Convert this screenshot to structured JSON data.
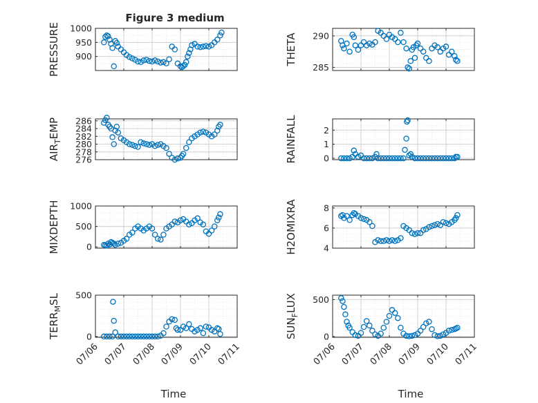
{
  "figure": {
    "title": "Figure 3 medium"
  },
  "colors": {
    "marker": "#0072BD",
    "axes": "#262626",
    "grid": "#d0d0d0",
    "minorgrid": "#e6e6e6"
  },
  "chart_data": [
    {
      "type": "scatter",
      "name": "PRESSURE",
      "ylabel": "PRESSURE",
      "ylabel_sub": "",
      "ylim": [
        850,
        1000
      ],
      "yticks": [
        "900",
        "950",
        "1000"
      ],
      "ytick_values": [
        900,
        950,
        1000
      ],
      "xlim": [
        0,
        5
      ],
      "grid": true,
      "x": [
        0.3,
        0.35,
        0.4,
        0.45,
        0.5,
        0.55,
        0.6,
        0.65,
        0.7,
        0.75,
        0.8,
        0.9,
        1.0,
        1.1,
        1.2,
        1.3,
        1.4,
        1.5,
        1.6,
        1.7,
        1.8,
        1.9,
        2.0,
        2.1,
        2.2,
        2.3,
        2.4,
        2.5,
        2.6,
        2.7,
        2.8,
        2.9,
        3.0,
        3.05,
        3.1,
        3.15,
        3.2,
        3.25,
        3.3,
        3.35,
        3.4,
        3.5,
        3.6,
        3.7,
        3.8,
        3.9,
        4.0,
        4.1,
        4.2,
        4.3,
        4.4,
        4.45
      ],
      "y": [
        950,
        970,
        975,
        972,
        960,
        945,
        930,
        865,
        955,
        948,
        935,
        925,
        915,
        905,
        898,
        893,
        888,
        882,
        880,
        886,
        888,
        884,
        882,
        886,
        882,
        878,
        880,
        875,
        890,
        935,
        925,
        875,
        865,
        862,
        866,
        870,
        880,
        900,
        912,
        925,
        940,
        945,
        935,
        933,
        935,
        937,
        935,
        940,
        950,
        960,
        975,
        985
      ]
    },
    {
      "type": "scatter",
      "name": "THETA",
      "ylabel": "THETA",
      "ylabel_sub": "",
      "ylim": [
        284.5,
        291.2
      ],
      "yticks": [
        "285",
        "290"
      ],
      "ytick_values": [
        285,
        290
      ],
      "xlim": [
        0,
        5
      ],
      "grid": true,
      "x": [
        0.3,
        0.35,
        0.4,
        0.5,
        0.6,
        0.7,
        0.75,
        0.8,
        0.9,
        1.0,
        1.1,
        1.2,
        1.3,
        1.4,
        1.5,
        1.6,
        1.7,
        1.8,
        1.9,
        2.0,
        2.1,
        2.2,
        2.3,
        2.4,
        2.5,
        2.6,
        2.65,
        2.7,
        2.75,
        2.8,
        2.85,
        2.9,
        2.95,
        3.0,
        3.1,
        3.2,
        3.3,
        3.4,
        3.5,
        3.6,
        3.7,
        3.8,
        3.9,
        4.0,
        4.1,
        4.2,
        4.3,
        4.35,
        4.4
      ],
      "y": [
        289.2,
        288.5,
        288.0,
        288.8,
        287.5,
        290.2,
        289.8,
        288.5,
        287.8,
        288.5,
        289.0,
        288.5,
        288.8,
        288.6,
        289.0,
        290.8,
        290.5,
        290.0,
        289.5,
        290.2,
        289.8,
        289.5,
        289.0,
        290.5,
        289.0,
        288.0,
        285.0,
        284.8,
        286.0,
        287.8,
        288.2,
        286.5,
        288.5,
        288.8,
        288.0,
        287.5,
        286.5,
        286.0,
        288.0,
        288.5,
        288.2,
        287.5,
        288.0,
        288.3,
        287.0,
        287.5,
        286.8,
        286.2,
        286.0
      ]
    },
    {
      "type": "scatter",
      "name": "AIR_TEMP",
      "ylabel": "AIR",
      "ylabel_sub": "T",
      "ylabel_rest": "EMP",
      "ylim": [
        276,
        286.5
      ],
      "yticks": [
        "276",
        "278",
        "280",
        "282",
        "284",
        "286"
      ],
      "ytick_values": [
        276,
        278,
        280,
        282,
        284,
        286
      ],
      "xlim": [
        0,
        5
      ],
      "grid": true,
      "x": [
        0.3,
        0.35,
        0.4,
        0.45,
        0.5,
        0.55,
        0.6,
        0.65,
        0.7,
        0.75,
        0.8,
        0.9,
        1.0,
        1.1,
        1.2,
        1.3,
        1.4,
        1.5,
        1.6,
        1.7,
        1.8,
        1.9,
        2.0,
        2.1,
        2.2,
        2.3,
        2.4,
        2.5,
        2.6,
        2.7,
        2.8,
        2.9,
        3.0,
        3.05,
        3.1,
        3.2,
        3.3,
        3.4,
        3.5,
        3.6,
        3.7,
        3.8,
        3.9,
        4.0,
        4.1,
        4.2,
        4.3,
        4.35,
        4.4
      ],
      "y": [
        285.5,
        286.2,
        286.8,
        285.0,
        284.5,
        284.0,
        281.8,
        280.0,
        283.5,
        284.5,
        283.0,
        281.5,
        281.0,
        280.5,
        280.0,
        279.8,
        279.5,
        279.3,
        280.5,
        280.2,
        280.0,
        279.8,
        280.0,
        279.5,
        279.8,
        280.0,
        279.5,
        279.0,
        277.5,
        276.5,
        276.0,
        276.3,
        276.5,
        277.0,
        277.5,
        279.0,
        280.5,
        281.5,
        282.0,
        282.5,
        283.0,
        283.2,
        283.0,
        282.5,
        282.0,
        282.5,
        283.5,
        284.5,
        285.0
      ]
    },
    {
      "type": "scatter",
      "name": "RAINFALL",
      "ylabel": "RAINFALL",
      "ylabel_sub": "",
      "ylim": [
        -0.1,
        2.8
      ],
      "yticks": [
        "0",
        "1",
        "2"
      ],
      "ytick_values": [
        0,
        1,
        2
      ],
      "xlim": [
        0,
        5
      ],
      "grid": true,
      "x": [
        0.3,
        0.4,
        0.5,
        0.6,
        0.7,
        0.75,
        0.8,
        0.9,
        1.0,
        1.1,
        1.2,
        1.3,
        1.4,
        1.5,
        1.55,
        1.6,
        1.7,
        1.8,
        1.9,
        2.0,
        2.1,
        2.2,
        2.3,
        2.4,
        2.5,
        2.55,
        2.6,
        2.62,
        2.65,
        2.7,
        2.75,
        2.8,
        2.9,
        3.0,
        3.1,
        3.2,
        3.3,
        3.4,
        3.5,
        3.6,
        3.7,
        3.8,
        3.9,
        4.0,
        4.1,
        4.2,
        4.3,
        4.35,
        4.4
      ],
      "y": [
        0,
        0,
        0,
        0,
        0.1,
        0.55,
        0.3,
        0.1,
        0.2,
        0,
        0,
        0,
        0,
        0.1,
        0.3,
        0,
        0,
        0,
        0,
        0,
        0,
        0,
        0,
        0,
        0,
        0.6,
        1.4,
        2.6,
        2.7,
        0.2,
        0.3,
        0.1,
        0,
        0,
        0,
        0,
        0,
        0,
        0,
        0,
        0,
        0,
        0,
        0,
        0,
        0,
        0,
        0.1,
        0.1
      ]
    },
    {
      "type": "scatter",
      "name": "MIXDEPTH",
      "ylabel": "MIXDEPTH",
      "ylabel_sub": "",
      "ylim": [
        -30,
        1000
      ],
      "yticks": [
        "0",
        "500",
        "1000"
      ],
      "ytick_values": [
        0,
        500,
        1000
      ],
      "xlim": [
        0,
        5
      ],
      "grid": true,
      "x": [
        0.3,
        0.35,
        0.4,
        0.45,
        0.5,
        0.55,
        0.6,
        0.65,
        0.7,
        0.8,
        0.9,
        1.0,
        1.1,
        1.2,
        1.3,
        1.4,
        1.5,
        1.6,
        1.7,
        1.8,
        1.9,
        2.0,
        2.1,
        2.2,
        2.3,
        2.4,
        2.5,
        2.6,
        2.7,
        2.8,
        2.9,
        3.0,
        3.1,
        3.2,
        3.3,
        3.4,
        3.5,
        3.6,
        3.7,
        3.8,
        3.9,
        4.0,
        4.1,
        4.2,
        4.3,
        4.35,
        4.4
      ],
      "y": [
        50,
        40,
        30,
        80,
        60,
        120,
        100,
        80,
        50,
        80,
        100,
        150,
        200,
        300,
        350,
        450,
        500,
        450,
        400,
        450,
        500,
        450,
        300,
        200,
        180,
        300,
        450,
        500,
        550,
        620,
        600,
        650,
        680,
        620,
        550,
        580,
        650,
        700,
        600,
        550,
        380,
        320,
        400,
        500,
        650,
        720,
        800
      ]
    },
    {
      "type": "scatter",
      "name": "H2OMIXRA",
      "ylabel": "H2OMIXRA",
      "ylabel_sub": "",
      "ylim": [
        4,
        8.2
      ],
      "yticks": [
        "4",
        "6",
        "8"
      ],
      "ytick_values": [
        4,
        6,
        8
      ],
      "xlim": [
        0,
        5
      ],
      "grid": true,
      "x": [
        0.3,
        0.35,
        0.4,
        0.5,
        0.6,
        0.7,
        0.75,
        0.8,
        0.9,
        1.0,
        1.1,
        1.2,
        1.3,
        1.4,
        1.5,
        1.6,
        1.7,
        1.8,
        1.9,
        2.0,
        2.1,
        2.2,
        2.3,
        2.4,
        2.5,
        2.6,
        2.7,
        2.8,
        2.9,
        3.0,
        3.1,
        3.2,
        3.3,
        3.4,
        3.5,
        3.6,
        3.7,
        3.8,
        3.9,
        4.0,
        4.1,
        4.2,
        4.3,
        4.35,
        4.4
      ],
      "y": [
        7.2,
        7.3,
        7.0,
        7.2,
        6.8,
        7.3,
        7.5,
        7.4,
        7.2,
        7.0,
        6.9,
        6.8,
        6.6,
        6.2,
        4.6,
        4.8,
        4.7,
        4.7,
        4.8,
        4.7,
        4.8,
        4.7,
        4.8,
        5.0,
        6.2,
        6.0,
        5.8,
        5.5,
        5.4,
        5.5,
        5.5,
        5.8,
        5.9,
        6.1,
        6.2,
        6.3,
        6.4,
        6.3,
        6.6,
        6.5,
        6.4,
        6.6,
        6.8,
        7.0,
        7.3
      ]
    },
    {
      "type": "scatter",
      "name": "TERR_MSL",
      "ylabel": "TERR",
      "ylabel_sub": "M",
      "ylabel_rest": "SL",
      "ylim": [
        -10,
        500
      ],
      "yticks": [
        "0",
        "500"
      ],
      "ytick_values": [
        0,
        500
      ],
      "xlim": [
        0,
        5
      ],
      "grid": true,
      "x": [
        0.3,
        0.4,
        0.5,
        0.6,
        0.62,
        0.65,
        0.7,
        0.8,
        0.9,
        1.0,
        1.1,
        1.2,
        1.3,
        1.4,
        1.5,
        1.6,
        1.7,
        1.8,
        1.9,
        2.0,
        2.1,
        2.2,
        2.3,
        2.4,
        2.5,
        2.6,
        2.7,
        2.8,
        2.85,
        2.9,
        3.0,
        3.1,
        3.2,
        3.3,
        3.4,
        3.5,
        3.6,
        3.7,
        3.8,
        3.9,
        4.0,
        4.1,
        4.2,
        4.3,
        4.35,
        4.4
      ],
      "y": [
        0,
        0,
        0,
        0,
        420,
        190,
        50,
        0,
        0,
        0,
        0,
        0,
        0,
        0,
        0,
        0,
        0,
        0,
        0,
        0,
        0,
        0,
        10,
        40,
        120,
        180,
        210,
        200,
        100,
        80,
        80,
        120,
        100,
        150,
        90,
        60,
        80,
        100,
        40,
        120,
        110,
        80,
        60,
        100,
        90,
        30
      ]
    },
    {
      "type": "scatter",
      "name": "SUN_FLUX",
      "ylabel": "SUN",
      "ylabel_sub": "F",
      "ylabel_rest": "LUX",
      "ylim": [
        -10,
        560
      ],
      "yticks": [
        "0",
        "500"
      ],
      "ytick_values": [
        0,
        500
      ],
      "xlim": [
        0,
        5
      ],
      "grid": true,
      "x": [
        0.3,
        0.35,
        0.4,
        0.45,
        0.5,
        0.55,
        0.6,
        0.7,
        0.8,
        0.9,
        1.0,
        1.1,
        1.2,
        1.3,
        1.4,
        1.5,
        1.6,
        1.7,
        1.8,
        1.9,
        2.0,
        2.1,
        2.2,
        2.3,
        2.4,
        2.5,
        2.6,
        2.7,
        2.8,
        2.9,
        3.0,
        3.1,
        3.2,
        3.3,
        3.4,
        3.5,
        3.6,
        3.7,
        3.8,
        3.9,
        4.0,
        4.1,
        4.2,
        4.3,
        4.35,
        4.4
      ],
      "y": [
        520,
        480,
        400,
        300,
        200,
        150,
        120,
        60,
        20,
        10,
        50,
        130,
        210,
        150,
        80,
        30,
        10,
        40,
        120,
        200,
        280,
        360,
        320,
        250,
        120,
        40,
        10,
        5,
        10,
        20,
        40,
        80,
        130,
        180,
        200,
        100,
        20,
        5,
        10,
        30,
        50,
        80,
        90,
        100,
        110,
        120
      ]
    }
  ],
  "xaxis": {
    "ticks": [
      "07/06",
      "07/07",
      "07/08",
      "07/09",
      "07/10",
      "07/11"
    ],
    "label": "Time"
  }
}
